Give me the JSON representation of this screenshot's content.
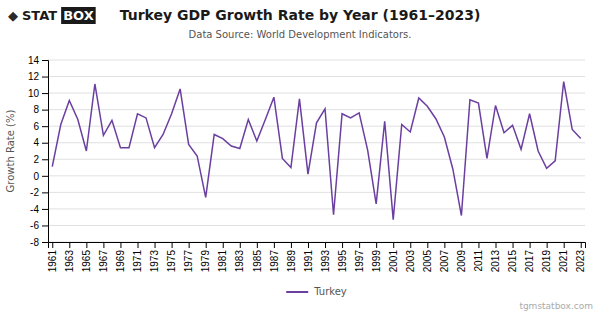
{
  "chart_data": {
    "type": "line",
    "title": "Turkey GDP Growth Rate by Year (1961–2023)",
    "subtitle": "Data Source: World Development Indicators.",
    "y_label": "Growth Rate (%)",
    "annotations": [
      "◆",
      "STAT",
      "BOX",
      "tgmstatbox.com"
    ],
    "x": [
      1961,
      1962,
      1963,
      1964,
      1965,
      1966,
      1967,
      1968,
      1969,
      1970,
      1971,
      1972,
      1973,
      1974,
      1975,
      1976,
      1977,
      1978,
      1979,
      1980,
      1981,
      1982,
      1983,
      1984,
      1985,
      1986,
      1987,
      1988,
      1989,
      1990,
      1991,
      1992,
      1993,
      1994,
      1995,
      1996,
      1997,
      1998,
      1999,
      2000,
      2001,
      2002,
      2003,
      2004,
      2005,
      2006,
      2007,
      2008,
      2009,
      2010,
      2011,
      2012,
      2013,
      2014,
      2015,
      2016,
      2017,
      2018,
      2019,
      2020,
      2021,
      2022,
      2023
    ],
    "series": [
      {
        "name": "Turkey",
        "color": "#6b3fa0",
        "values": [
          1.1,
          6.2,
          9.1,
          6.8,
          3.0,
          11.1,
          4.9,
          6.7,
          3.4,
          3.4,
          7.5,
          7.0,
          3.4,
          5.0,
          7.5,
          10.5,
          3.8,
          2.4,
          -2.6,
          5.0,
          4.5,
          3.6,
          3.3,
          6.8,
          4.2,
          6.8,
          9.5,
          2.1,
          1.0,
          9.3,
          0.2,
          6.4,
          8.1,
          -4.7,
          7.5,
          7.0,
          7.6,
          3.1,
          -3.4,
          6.6,
          -5.3,
          6.2,
          5.3,
          9.4,
          8.4,
          6.9,
          4.7,
          0.8,
          -4.8,
          9.2,
          8.8,
          2.1,
          8.5,
          5.2,
          6.1,
          3.2,
          7.5,
          3.0,
          0.9,
          1.8,
          11.4,
          5.6,
          4.5
        ]
      }
    ],
    "xlim": [
      1960.5,
      2023.5
    ],
    "xticks": [
      1961,
      1963,
      1965,
      1967,
      1969,
      1971,
      1973,
      1975,
      1977,
      1979,
      1981,
      1983,
      1985,
      1987,
      1989,
      1991,
      1993,
      1995,
      1997,
      1999,
      2001,
      2003,
      2005,
      2007,
      2009,
      2011,
      2013,
      2015,
      2017,
      2019,
      2021,
      2023
    ],
    "ylim": [
      -8,
      14
    ],
    "yticks": [
      -8,
      -6,
      -4,
      -2,
      0,
      2,
      4,
      6,
      8,
      10,
      12,
      14
    ],
    "grid": true,
    "legend": "bottom"
  }
}
